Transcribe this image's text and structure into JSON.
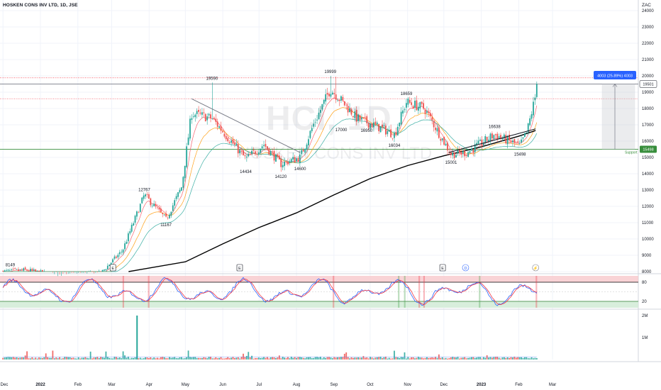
{
  "header": {
    "title": "HOSKEN CONS INV LTD, 1D, JSE",
    "currency": "ZAC"
  },
  "watermark": {
    "symbol": "HCI, 1D",
    "name": "HOSKEN CONS INV LTD"
  },
  "chart_data": {
    "type": "candlestick",
    "y_axis": {
      "min": 8000,
      "max": 24000,
      "ticks": [
        24000,
        23000,
        22000,
        21000,
        20000,
        19000,
        18000,
        17000,
        16000,
        15000,
        14000,
        13000,
        12000,
        11000,
        10000,
        9000,
        8000
      ]
    },
    "x_axis": {
      "ticks": [
        "Dec",
        "2022",
        "Feb",
        "Mar",
        "Apr",
        "May",
        "Jun",
        "Jul",
        "Aug",
        "Sep",
        "Oct",
        "Nov",
        "Dec",
        "2023",
        "Feb",
        "Mar"
      ]
    },
    "price_labels": [
      {
        "text": "8149",
        "value": 8149,
        "date": "2021-12-07"
      },
      {
        "text": "12767",
        "value": 12767,
        "date": "2022-03-28"
      },
      {
        "text": "11167",
        "value": 11167,
        "date": "2022-04-15"
      },
      {
        "text": "19590",
        "value": 19590,
        "date": "2022-05-23"
      },
      {
        "text": "14434",
        "value": 14434,
        "date": "2022-06-20"
      },
      {
        "text": "14120",
        "value": 14120,
        "date": "2022-07-19"
      },
      {
        "text": "14600",
        "value": 14600,
        "date": "2022-08-04"
      },
      {
        "text": "19999",
        "value": 19999,
        "date": "2022-08-29"
      },
      {
        "text": "17000",
        "value": 17000,
        "date": "2022-09-07"
      },
      {
        "text": "16950",
        "value": 16950,
        "date": "2022-09-28"
      },
      {
        "text": "18659",
        "value": 18659,
        "date": "2022-10-31"
      },
      {
        "text": "16034",
        "value": 16034,
        "date": "2022-10-21"
      },
      {
        "text": "15001",
        "value": 15001,
        "date": "2022-12-07"
      },
      {
        "text": "16638",
        "value": 16638,
        "date": "2023-01-12"
      },
      {
        "text": "15498",
        "value": 15498,
        "date": "2023-02-02"
      }
    ],
    "axis_badges": [
      {
        "text": "19501",
        "value": 19501
      },
      {
        "text": "15498",
        "value": 15498
      }
    ],
    "horizontal_levels": [
      {
        "value": 19880,
        "color": "#f23645",
        "style": "dotted"
      },
      {
        "value": 19501,
        "color": "#787b86",
        "style": "solid"
      },
      {
        "value": 18600,
        "color": "#f23645",
        "style": "dotted"
      },
      {
        "value": 15498,
        "color": "#388e3c",
        "style": "solid",
        "label": "Support"
      }
    ],
    "measure": {
      "text": "4003 (25.89%) 4003",
      "from": 15498,
      "to": 19501
    },
    "trendlines": [
      {
        "from": {
          "date": "2022-05-06",
          "value": 18600
        },
        "to": {
          "date": "2022-08-04",
          "value": 15300
        }
      },
      {
        "from": {
          "date": "2022-12-05",
          "value": 15300
        },
        "to": {
          "date": "2023-02-15",
          "value": 16750
        }
      }
    ],
    "moving_average_200": [
      {
        "date": "2022-03-15",
        "value": 7600
      },
      {
        "date": "2022-05-01",
        "value": 8600
      },
      {
        "date": "2022-06-01",
        "value": 9700
      },
      {
        "date": "2022-07-01",
        "value": 10700
      },
      {
        "date": "2022-08-01",
        "value": 11600
      },
      {
        "date": "2022-09-01",
        "value": 12700
      },
      {
        "date": "2022-10-01",
        "value": 13700
      },
      {
        "date": "2022-11-01",
        "value": 14500
      },
      {
        "date": "2022-12-01",
        "value": 15100
      },
      {
        "date": "2023-01-01",
        "value": 15650
      },
      {
        "date": "2023-02-01",
        "value": 16300
      },
      {
        "date": "2023-02-15",
        "value": 16650
      }
    ],
    "event_markers": [
      {
        "text": "E",
        "date": "2022-03-02"
      },
      {
        "text": "E",
        "date": "2022-06-15"
      },
      {
        "text": "E",
        "date": "2022-11-30"
      },
      {
        "text": "D",
        "date": "2022-12-19"
      },
      {
        "text": "⚡",
        "date": "2023-02-15"
      }
    ],
    "stochastic": {
      "levels": [
        80,
        20
      ],
      "ticks": [
        "80",
        "20"
      ],
      "overbought_color": "#f8c8cc",
      "oversold_color": "#d4ecd8"
    },
    "volume": {
      "ticks": [
        "2M",
        "1M"
      ],
      "spike": {
        "date": "2022-03-22",
        "value": 2000000
      }
    },
    "colors": {
      "up": "#26a69a",
      "down": "#ef5350",
      "ma200": "#000000",
      "stoch_k": "#2962ff",
      "stoch_d": "#f23645",
      "vol_up": "#26a69a",
      "vol_down": "#ef5350",
      "measure": "#2962ff"
    }
  }
}
